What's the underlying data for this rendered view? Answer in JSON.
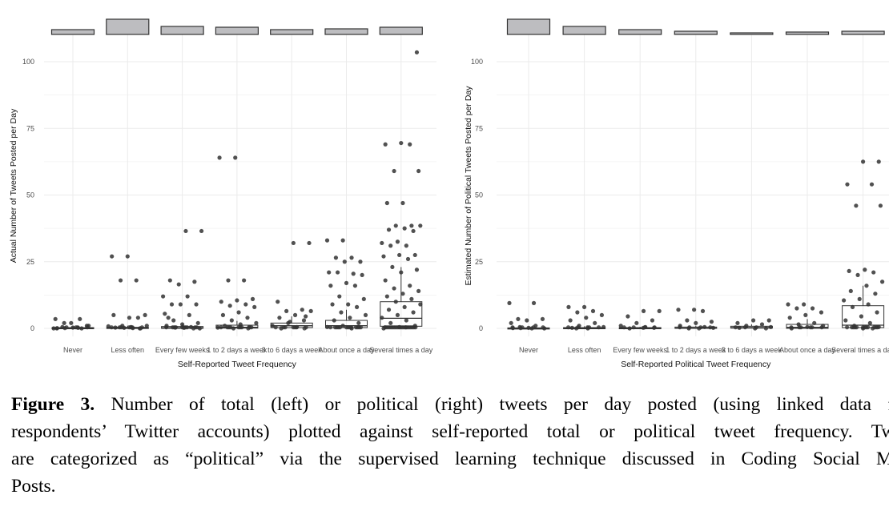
{
  "chart_data": [
    {
      "type": "boxplot+jitter",
      "panel": "left",
      "xlabel": "Self-Reported Tweet Frequency",
      "ylabel": "Actual Number of Tweets Posted per Day",
      "ylim": [
        0,
        105
      ],
      "yticks": [
        "0",
        "25",
        "50",
        "75",
        "100"
      ],
      "ytick_values": [
        0,
        25,
        50,
        75,
        100
      ],
      "grid": true,
      "categories": [
        "Never",
        "Less often",
        "Every few weeks",
        "1 to 2 days a week",
        "3 to 6 days a week",
        "About once a day",
        "Several times a day"
      ],
      "marginal_bar_relative": [
        6,
        19,
        10,
        9,
        6,
        7,
        9
      ],
      "boxes": [
        {
          "q1": 0,
          "median": 0.1,
          "q3": 0.3,
          "whisker_high": 0.8
        },
        {
          "q1": 0,
          "median": 0.1,
          "q3": 0.4,
          "whisker_high": 1
        },
        {
          "q1": 0,
          "median": 0.2,
          "q3": 0.7,
          "whisker_high": 1.7
        },
        {
          "q1": 0.1,
          "median": 0.4,
          "q3": 1.2,
          "whisker_high": 2.8
        },
        {
          "q1": 0.3,
          "median": 1,
          "q3": 2,
          "whisker_high": 4.5
        },
        {
          "q1": 0.3,
          "median": 1,
          "q3": 3,
          "whisker_high": 7
        },
        {
          "q1": 0.8,
          "median": 3.8,
          "q3": 10,
          "whisker_high": 23
        }
      ],
      "points": [
        [
          0,
          0.2,
          0.5,
          1,
          2,
          3.5,
          3.5,
          2,
          1,
          0.3,
          0.1,
          0
        ],
        [
          27,
          27,
          18,
          18,
          5,
          4,
          5,
          4,
          1,
          1,
          0.5,
          0.3,
          0,
          0.2,
          0.8,
          0.1
        ],
        [
          36.5,
          36.5,
          18,
          17.5,
          16.5,
          12,
          12,
          9,
          9,
          9,
          5.5,
          5,
          3,
          2,
          1.5,
          1,
          0.5,
          0.3,
          0,
          0.2,
          4
        ],
        [
          64,
          64,
          18,
          18,
          11,
          10.5,
          10,
          9,
          8.5,
          8,
          6,
          5,
          4,
          3,
          2,
          1.5,
          1,
          0.5,
          0,
          0.3
        ],
        [
          32,
          32,
          10,
          7,
          6.5,
          6.5,
          5,
          4,
          3,
          2,
          1,
          0.5,
          0,
          4.5,
          2.5
        ],
        [
          33,
          33,
          26.5,
          26.5,
          25,
          25,
          21,
          20.5,
          21,
          20,
          17,
          16,
          16,
          12,
          11,
          9,
          9,
          8,
          6,
          5,
          4,
          3,
          2,
          1,
          0.5,
          0
        ],
        [
          103.5,
          69.5,
          69,
          69,
          59,
          59,
          47,
          47,
          38.5,
          38.5,
          38.5,
          37.5,
          37,
          36.5,
          32.5,
          32,
          31,
          31,
          27.5,
          27.5,
          27,
          26,
          23,
          22,
          21,
          18,
          16,
          15,
          14,
          13,
          12,
          11,
          10,
          9,
          8,
          7,
          6,
          5,
          4,
          3,
          2,
          1,
          0.5,
          0
        ]
      ]
    },
    {
      "type": "boxplot+jitter",
      "panel": "right",
      "xlabel": "Self-Reported Political Tweet Frequency",
      "ylabel": "Estimated Number of Political Tweets Posted per Day",
      "ylim": [
        0,
        105
      ],
      "yticks": [
        "0",
        "25",
        "50",
        "75",
        "100"
      ],
      "ytick_values": [
        0,
        25,
        50,
        75,
        100
      ],
      "grid": true,
      "categories": [
        "Never",
        "Less often",
        "Every few weeks",
        "1 to 2 days a week",
        "3 to 6 days a week",
        "About once a day",
        "Several times a day"
      ],
      "marginal_bar_relative": [
        19,
        10,
        6,
        4,
        2,
        3,
        4
      ],
      "boxes": [
        {
          "q1": 0,
          "median": 0,
          "q3": 0.2,
          "whisker_high": 0.5
        },
        {
          "q1": 0,
          "median": 0,
          "q3": 0.3,
          "whisker_high": 0.8
        },
        {
          "q1": 0,
          "median": 0,
          "q3": 0.3,
          "whisker_high": 0.6
        },
        {
          "q1": 0,
          "median": 0.1,
          "q3": 0.5,
          "whisker_high": 1
        },
        {
          "q1": 0.1,
          "median": 0.3,
          "q3": 0.8,
          "whisker_high": 1.5
        },
        {
          "q1": 0,
          "median": 0.4,
          "q3": 1.5,
          "whisker_high": 3.5
        },
        {
          "q1": 0.3,
          "median": 1.2,
          "q3": 8.5,
          "whisker_high": 16
        }
      ],
      "points": [
        [
          9.5,
          9.5,
          3.5,
          3.5,
          3,
          2,
          1,
          0.5,
          0,
          0.2,
          0.1
        ],
        [
          8,
          8,
          6.5,
          6,
          5,
          4,
          3,
          2,
          1,
          0.5,
          0,
          0.2
        ],
        [
          6.5,
          6.5,
          4.5,
          3,
          2,
          1,
          0.5,
          0,
          0.2
        ],
        [
          7,
          7,
          6.5,
          3,
          2.5,
          2,
          1,
          0.5,
          0,
          0.2
        ],
        [
          3,
          3,
          2,
          1.5,
          1,
          0.5,
          0,
          0.2
        ],
        [
          9,
          9,
          7.5,
          7.5,
          6,
          5,
          4,
          2,
          1.5,
          1,
          0.5,
          0
        ],
        [
          62.5,
          62.5,
          54,
          54,
          46,
          46,
          22,
          21.5,
          21,
          20,
          17.5,
          16,
          14,
          13,
          11,
          10.5,
          9,
          8,
          6,
          4.5,
          3,
          2,
          1,
          0.5,
          0
        ]
      ]
    }
  ],
  "caption": {
    "label": "Figure 3.",
    "lines": [
      " Number of total (left) or political (right) tweets per day posted (using linked data from",
      "respondents’ Twitter accounts) plotted against self-reported total or political tweet frequency. Tweets",
      "are categorized as “political” via the supervised learning technique discussed in Coding Social Media",
      "Posts."
    ]
  }
}
